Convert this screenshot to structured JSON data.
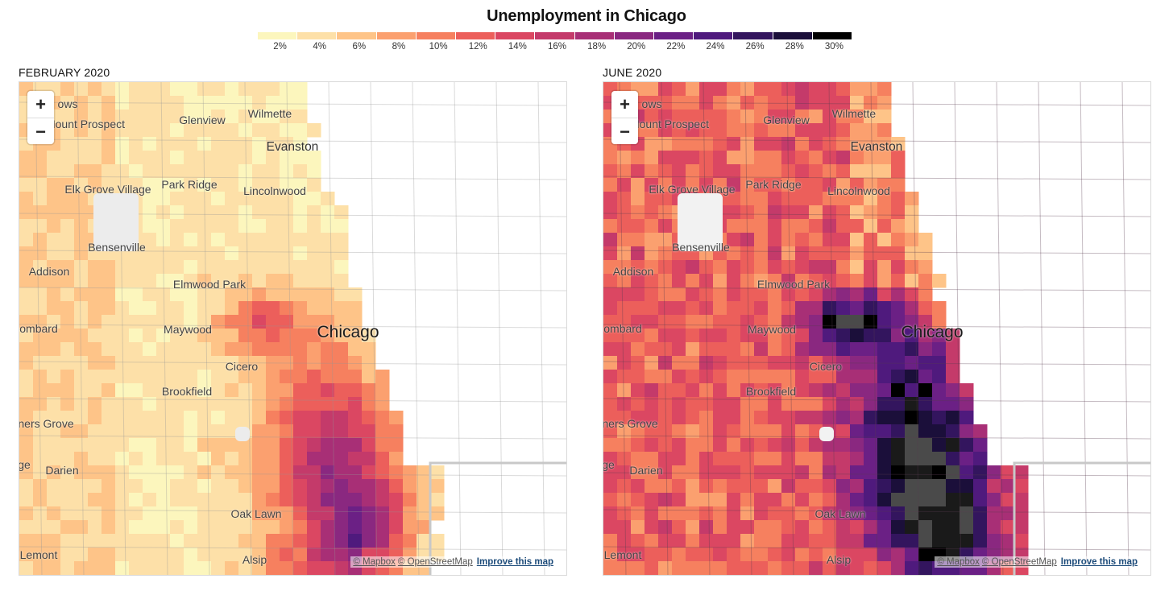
{
  "title": "Unemployment in Chicago",
  "legend": {
    "colors": [
      "#fcf6bd",
      "#fde0a8",
      "#fec488",
      "#fba06f",
      "#f6805f",
      "#ec5f5b",
      "#db4762",
      "#c43a6a",
      "#a82f76",
      "#8a2880",
      "#6b2085",
      "#4f1a7d",
      "#33155e",
      "#1b0f3a",
      "#000000"
    ],
    "ticks": [
      "2%",
      "4%",
      "6%",
      "8%",
      "10%",
      "12%",
      "14%",
      "16%",
      "18%",
      "20%",
      "22%",
      "24%",
      "26%",
      "28%",
      "30%"
    ]
  },
  "maps": [
    {
      "label": "FEBRUARY 2020",
      "scenario": "feb",
      "zoom_in": "+",
      "zoom_out": "−",
      "attribution": {
        "mapbox": "© Mapbox",
        "osm": "© OpenStreetMap",
        "improve": "Improve this map"
      },
      "places": [
        {
          "name": "Mount Prospect"
        },
        {
          "name": "Glenview"
        },
        {
          "name": "Wilmette"
        },
        {
          "name": "Evanston"
        },
        {
          "name": "Elk Grove Village"
        },
        {
          "name": "Park Ridge"
        },
        {
          "name": "Lincolnwood"
        },
        {
          "name": "Bensenville"
        },
        {
          "name": "Addison"
        },
        {
          "name": "Elmwood Park"
        },
        {
          "name": "ombard"
        },
        {
          "name": "Maywood"
        },
        {
          "name": "Chicago"
        },
        {
          "name": "Cicero"
        },
        {
          "name": "Brookfield"
        },
        {
          "name": "ners Grove"
        },
        {
          "name": "ge"
        },
        {
          "name": "Darien"
        },
        {
          "name": "Oak Lawn"
        },
        {
          "name": "Lemont"
        },
        {
          "name": "Alsip"
        },
        {
          "name": "ows"
        }
      ]
    },
    {
      "label": "JUNE 2020",
      "scenario": "jun",
      "zoom_in": "+",
      "zoom_out": "−",
      "attribution": {
        "mapbox": "© Mapbox",
        "osm": "© OpenStreetMap",
        "improve": "Improve this map"
      },
      "places": [
        {
          "name": "Mount Prospect"
        },
        {
          "name": "Glenview"
        },
        {
          "name": "Wilmette"
        },
        {
          "name": "Evanston"
        },
        {
          "name": "Elk Grove Village"
        },
        {
          "name": "Park Ridge"
        },
        {
          "name": "Lincolnwood"
        },
        {
          "name": "Bensenville"
        },
        {
          "name": "Addison"
        },
        {
          "name": "Elmwood Park"
        },
        {
          "name": "ombard"
        },
        {
          "name": "Maywood"
        },
        {
          "name": "Chicago"
        },
        {
          "name": "Cicero"
        },
        {
          "name": "Brookfield"
        },
        {
          "name": "ners Grove"
        },
        {
          "name": "ge"
        },
        {
          "name": "Darien"
        },
        {
          "name": "Oak Lawn"
        },
        {
          "name": "Lemont"
        },
        {
          "name": "Alsip"
        },
        {
          "name": "ows"
        }
      ]
    }
  ]
}
